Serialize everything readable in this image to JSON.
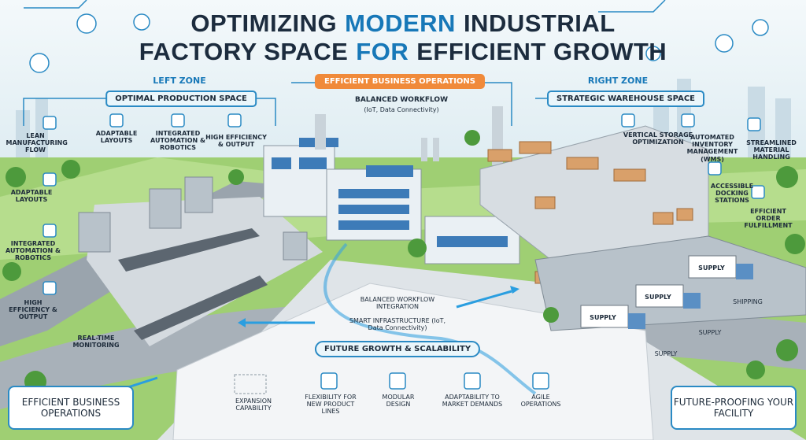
{
  "title": {
    "line1": [
      "OPTIMIZING",
      "MODERN",
      "INDUSTRIAL"
    ],
    "line2": [
      "FACTORY SPACE",
      "FOR",
      "EFFICIENT GROWTH"
    ]
  },
  "left_zone": {
    "label": "LEFT ZONE",
    "header": "OPTIMAL PRODUCTION SPACE",
    "top_items": [
      "ADAPTABLE LAYOUTS",
      "INTEGRATED AUTOMATION & ROBOTICS",
      "HIGH EFFICIENCY & OUTPUT"
    ],
    "side_items": [
      "LEAN MANUFACTURING FLOW",
      "ADAPTABLE LAYOUTS",
      "INTEGRATED AUTOMATION & ROBOTICS",
      "HIGH EFFICIENCY & OUTPUT",
      "REAL-TIME MONITORING"
    ]
  },
  "center": {
    "header": "EFFICIENT BUSINESS OPERATIONS",
    "line1": "BALANCED WORKFLOW",
    "line2": "(IoT, Data Connectivity)"
  },
  "right_zone": {
    "label": "RIGHT ZONE",
    "header": "STRATEGIC WAREHOUSE SPACE",
    "items": [
      "VERTICAL STORAGE OPTIMIZATION",
      "AUTOMATED INVENTORY MANAGEMENT (WMS)",
      "STREAMLINED MATERIAL HANDLING",
      "ACCESSIBLE DOCKING STATIONS",
      "EFFICIENT ORDER FULFILLMENT"
    ]
  },
  "trucks": [
    "SUPPLY",
    "SUPPLY",
    "SUPPLY"
  ],
  "road_labels": [
    "SHIPPING",
    "SUPPLY",
    "SUPPLY"
  ],
  "middle": {
    "workflow": "BALANCED WORKFLOW INTEGRATION",
    "infrastructure": "SMART INFRASTRUCTURE (IoT, Data Connectivity)",
    "growth_header": "FUTURE GROWTH & SCALABILITY",
    "growth_items": [
      "EXPANSION CAPABILITY",
      "FLEXIBILITY FOR NEW PRODUCT LINES",
      "MODULAR DESIGN",
      "ADAPTABILITY TO MARKET DEMANDS",
      "AGILE OPERATIONS"
    ]
  },
  "corners": {
    "left": "EFFICIENT BUSINESS OPERATIONS",
    "right": "FUTURE-PROOFING YOUR FACILITY"
  }
}
